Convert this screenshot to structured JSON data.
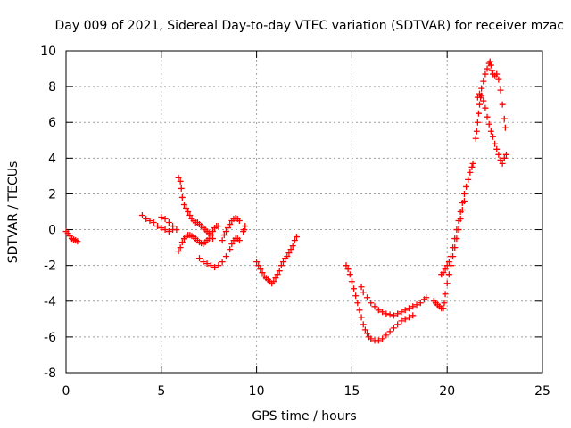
{
  "chart_data": {
    "type": "scatter",
    "title": "Day 009 of 2021, Sidereal Day-to-day VTEC variation (SDTVAR) for receiver mzac",
    "xlabel": "GPS time / hours",
    "ylabel": "SDTVAR / TECUs",
    "xlim": [
      0,
      25
    ],
    "ylim": [
      -8,
      10
    ],
    "xticks": [
      0,
      5,
      10,
      15,
      20,
      25
    ],
    "yticks": [
      -8,
      -6,
      -4,
      -2,
      0,
      2,
      4,
      6,
      8,
      10
    ],
    "grid": true,
    "marker": "+",
    "color": "#ff0000",
    "series": [
      {
        "name": "seg1",
        "points": [
          [
            0.0,
            -0.1
          ],
          [
            0.1,
            -0.2
          ],
          [
            0.2,
            -0.35
          ],
          [
            0.3,
            -0.5
          ],
          [
            0.4,
            -0.55
          ],
          [
            0.5,
            -0.6
          ],
          [
            0.6,
            -0.65
          ]
        ]
      },
      {
        "name": "seg2",
        "points": [
          [
            4.0,
            0.8
          ],
          [
            4.2,
            0.6
          ],
          [
            4.4,
            0.5
          ],
          [
            4.6,
            0.4
          ],
          [
            4.8,
            0.2
          ],
          [
            5.0,
            0.1
          ],
          [
            5.2,
            0.0
          ],
          [
            5.4,
            -0.1
          ],
          [
            5.6,
            0.0
          ],
          [
            5.0,
            0.7
          ],
          [
            5.2,
            0.6
          ],
          [
            5.4,
            0.4
          ],
          [
            5.6,
            0.2
          ],
          [
            5.8,
            0.0
          ]
        ]
      },
      {
        "name": "seg3",
        "points": [
          [
            5.9,
            2.9
          ],
          [
            6.0,
            2.7
          ],
          [
            6.05,
            2.3
          ],
          [
            6.1,
            1.8
          ],
          [
            6.2,
            1.4
          ],
          [
            6.3,
            1.2
          ],
          [
            6.4,
            1.0
          ],
          [
            6.5,
            0.8
          ],
          [
            6.6,
            0.6
          ],
          [
            6.7,
            0.5
          ],
          [
            6.8,
            0.4
          ],
          [
            6.9,
            0.4
          ],
          [
            7.0,
            0.3
          ],
          [
            7.1,
            0.2
          ],
          [
            7.2,
            0.1
          ],
          [
            7.3,
            0.0
          ],
          [
            7.4,
            -0.1
          ],
          [
            7.5,
            -0.2
          ],
          [
            7.6,
            -0.3
          ],
          [
            7.7,
            -0.5
          ]
        ]
      },
      {
        "name": "seg4",
        "points": [
          [
            5.9,
            -1.2
          ],
          [
            6.0,
            -1.0
          ],
          [
            6.1,
            -0.7
          ],
          [
            6.2,
            -0.5
          ],
          [
            6.3,
            -0.4
          ],
          [
            6.4,
            -0.3
          ],
          [
            6.5,
            -0.3
          ],
          [
            6.6,
            -0.35
          ],
          [
            6.7,
            -0.4
          ],
          [
            6.8,
            -0.5
          ],
          [
            6.9,
            -0.6
          ],
          [
            7.0,
            -0.7
          ],
          [
            7.1,
            -0.75
          ],
          [
            7.2,
            -0.8
          ],
          [
            7.3,
            -0.7
          ],
          [
            7.4,
            -0.6
          ],
          [
            7.5,
            -0.5
          ],
          [
            7.6,
            -0.3
          ],
          [
            7.7,
            -0.1
          ],
          [
            7.8,
            0.1
          ],
          [
            7.9,
            0.2
          ],
          [
            8.0,
            0.2
          ]
        ]
      },
      {
        "name": "seg5",
        "points": [
          [
            7.0,
            -1.6
          ],
          [
            7.2,
            -1.8
          ],
          [
            7.4,
            -1.9
          ],
          [
            7.6,
            -2.0
          ],
          [
            7.8,
            -2.1
          ],
          [
            8.0,
            -2.0
          ],
          [
            8.2,
            -1.8
          ],
          [
            8.4,
            -1.5
          ],
          [
            8.6,
            -1.1
          ],
          [
            8.7,
            -0.8
          ],
          [
            8.8,
            -0.6
          ],
          [
            8.9,
            -0.5
          ],
          [
            9.0,
            -0.5
          ],
          [
            9.1,
            -0.6
          ]
        ]
      },
      {
        "name": "seg6",
        "points": [
          [
            8.2,
            -0.6
          ],
          [
            8.3,
            -0.3
          ],
          [
            8.4,
            -0.1
          ],
          [
            8.5,
            0.1
          ],
          [
            8.6,
            0.3
          ],
          [
            8.7,
            0.5
          ],
          [
            8.8,
            0.6
          ],
          [
            8.9,
            0.65
          ],
          [
            9.0,
            0.6
          ],
          [
            9.1,
            0.5
          ]
        ]
      },
      {
        "name": "seg7",
        "points": [
          [
            9.3,
            -0.1
          ],
          [
            9.35,
            0.0
          ],
          [
            9.4,
            0.2
          ]
        ]
      },
      {
        "name": "seg8",
        "points": [
          [
            10.0,
            -1.8
          ],
          [
            10.1,
            -2.0
          ],
          [
            10.2,
            -2.2
          ],
          [
            10.3,
            -2.4
          ],
          [
            10.4,
            -2.6
          ],
          [
            10.5,
            -2.7
          ],
          [
            10.6,
            -2.8
          ],
          [
            10.7,
            -2.9
          ],
          [
            10.8,
            -3.0
          ],
          [
            10.9,
            -2.9
          ],
          [
            11.0,
            -2.7
          ],
          [
            11.1,
            -2.5
          ],
          [
            11.2,
            -2.3
          ],
          [
            11.3,
            -2.0
          ],
          [
            11.4,
            -1.8
          ],
          [
            11.5,
            -1.6
          ],
          [
            11.6,
            -1.5
          ],
          [
            11.7,
            -1.3
          ],
          [
            11.8,
            -1.1
          ],
          [
            11.9,
            -0.9
          ],
          [
            12.0,
            -0.6
          ],
          [
            12.1,
            -0.4
          ]
        ]
      },
      {
        "name": "seg9",
        "points": [
          [
            14.7,
            -2.0
          ],
          [
            14.8,
            -2.2
          ],
          [
            14.9,
            -2.5
          ],
          [
            15.0,
            -2.9
          ],
          [
            15.1,
            -3.3
          ],
          [
            15.2,
            -3.7
          ],
          [
            15.3,
            -4.1
          ],
          [
            15.4,
            -4.5
          ],
          [
            15.5,
            -4.9
          ],
          [
            15.6,
            -5.3
          ],
          [
            15.7,
            -5.6
          ],
          [
            15.8,
            -5.8
          ],
          [
            15.9,
            -6.0
          ],
          [
            16.0,
            -6.1
          ],
          [
            16.2,
            -6.2
          ],
          [
            16.4,
            -6.2
          ],
          [
            16.6,
            -6.1
          ],
          [
            16.8,
            -5.9
          ],
          [
            17.0,
            -5.7
          ],
          [
            17.2,
            -5.5
          ],
          [
            17.4,
            -5.3
          ],
          [
            17.6,
            -5.1
          ],
          [
            17.8,
            -5.0
          ],
          [
            18.0,
            -4.9
          ],
          [
            18.2,
            -4.8
          ]
        ]
      },
      {
        "name": "seg10",
        "points": [
          [
            15.5,
            -3.2
          ],
          [
            15.6,
            -3.5
          ],
          [
            15.8,
            -3.8
          ],
          [
            16.0,
            -4.1
          ],
          [
            16.2,
            -4.3
          ],
          [
            16.4,
            -4.5
          ],
          [
            16.6,
            -4.6
          ],
          [
            16.8,
            -4.7
          ],
          [
            17.0,
            -4.75
          ],
          [
            17.2,
            -4.8
          ],
          [
            17.4,
            -4.7
          ],
          [
            17.6,
            -4.6
          ],
          [
            17.8,
            -4.5
          ],
          [
            18.0,
            -4.4
          ],
          [
            18.2,
            -4.3
          ],
          [
            18.4,
            -4.2
          ],
          [
            18.6,
            -4.1
          ],
          [
            18.8,
            -3.9
          ],
          [
            18.9,
            -3.8
          ]
        ]
      },
      {
        "name": "seg11",
        "points": [
          [
            19.3,
            -4.0
          ],
          [
            19.4,
            -4.1
          ],
          [
            19.5,
            -4.2
          ],
          [
            19.6,
            -4.3
          ],
          [
            19.7,
            -4.4
          ],
          [
            19.8,
            -4.4
          ],
          [
            19.85,
            -4.1
          ]
        ]
      },
      {
        "name": "seg12",
        "points": [
          [
            19.7,
            -2.5
          ],
          [
            19.8,
            -2.4
          ],
          [
            19.9,
            -2.2
          ],
          [
            20.0,
            -2.0
          ],
          [
            20.1,
            -1.8
          ],
          [
            20.2,
            -1.5
          ],
          [
            20.3,
            -1.0
          ],
          [
            20.4,
            -0.5
          ],
          [
            20.5,
            0.0
          ],
          [
            20.6,
            0.5
          ],
          [
            20.7,
            1.0
          ],
          [
            20.8,
            1.5
          ],
          [
            20.9,
            2.0
          ],
          [
            21.0,
            2.4
          ],
          [
            21.1,
            2.8
          ],
          [
            21.2,
            3.2
          ],
          [
            21.3,
            3.5
          ],
          [
            21.35,
            3.7
          ]
        ]
      },
      {
        "name": "seg13",
        "points": [
          [
            19.9,
            -3.6
          ],
          [
            20.0,
            -3.0
          ],
          [
            20.1,
            -2.5
          ],
          [
            20.2,
            -2.0
          ],
          [
            20.3,
            -1.5
          ],
          [
            20.4,
            -1.0
          ],
          [
            20.5,
            -0.5
          ],
          [
            20.6,
            0.0
          ],
          [
            20.7,
            0.6
          ],
          [
            20.8,
            1.1
          ],
          [
            20.9,
            1.6
          ]
        ]
      },
      {
        "name": "seg14",
        "points": [
          [
            21.5,
            5.1
          ],
          [
            21.55,
            5.5
          ],
          [
            21.6,
            6.0
          ],
          [
            21.65,
            6.5
          ],
          [
            21.7,
            7.0
          ],
          [
            21.75,
            7.4
          ],
          [
            21.8,
            7.5
          ],
          [
            21.9,
            7.2
          ],
          [
            22.0,
            6.8
          ],
          [
            22.1,
            6.3
          ],
          [
            22.2,
            5.9
          ],
          [
            22.3,
            5.5
          ],
          [
            22.4,
            5.2
          ],
          [
            22.5,
            4.8
          ],
          [
            22.6,
            4.5
          ],
          [
            22.7,
            4.2
          ],
          [
            22.8,
            3.9
          ],
          [
            22.9,
            3.7
          ],
          [
            23.0,
            4.0
          ],
          [
            23.1,
            4.2
          ]
        ]
      },
      {
        "name": "seg15",
        "points": [
          [
            21.6,
            7.4
          ],
          [
            21.7,
            7.6
          ],
          [
            21.8,
            7.9
          ],
          [
            21.9,
            8.3
          ],
          [
            22.0,
            8.7
          ],
          [
            22.1,
            9.0
          ],
          [
            22.2,
            9.3
          ],
          [
            22.25,
            9.4
          ],
          [
            22.3,
            9.2
          ],
          [
            22.35,
            8.9
          ],
          [
            22.4,
            8.7
          ],
          [
            22.5,
            8.6
          ],
          [
            22.6,
            8.7
          ],
          [
            22.7,
            8.4
          ],
          [
            22.8,
            7.8
          ],
          [
            22.9,
            7.0
          ],
          [
            23.0,
            6.2
          ],
          [
            23.05,
            5.7
          ]
        ]
      }
    ]
  }
}
